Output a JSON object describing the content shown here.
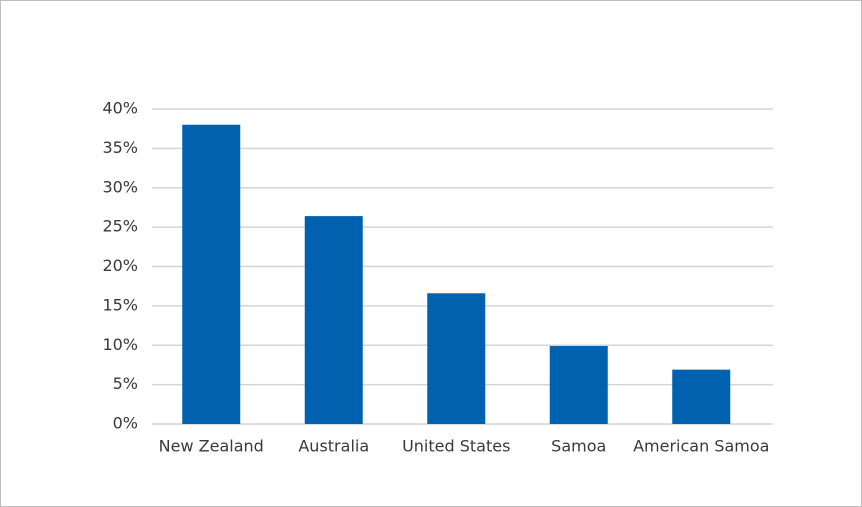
{
  "chart_data": {
    "type": "bar",
    "categories": [
      "New Zealand",
      "Australia",
      "United States",
      "Samoa",
      "American Samoa"
    ],
    "values": [
      38,
      26.4,
      16.6,
      9.9,
      6.9
    ],
    "color": "#0061ae",
    "ylim": [
      0,
      40
    ],
    "yticks": [
      {
        "value": 0,
        "label": "0%"
      },
      {
        "value": 5,
        "label": "5%"
      },
      {
        "value": 10,
        "label": "10%"
      },
      {
        "value": 15,
        "label": "15%"
      },
      {
        "value": 20,
        "label": "20%"
      },
      {
        "value": 25,
        "label": "25%"
      },
      {
        "value": 30,
        "label": "30%"
      },
      {
        "value": 35,
        "label": "35%"
      },
      {
        "value": 40,
        "label": "40%"
      }
    ],
    "grid": true
  }
}
